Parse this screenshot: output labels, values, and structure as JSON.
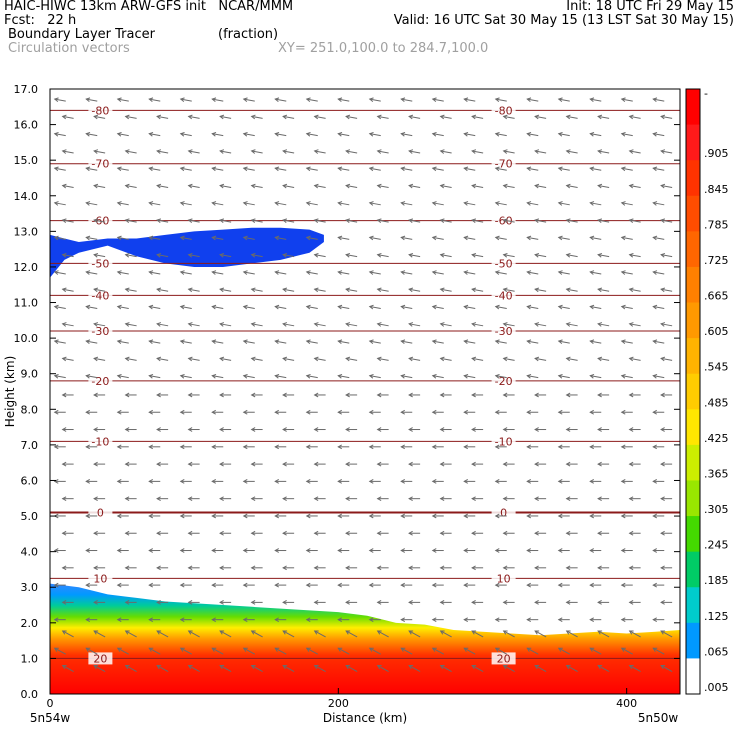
{
  "header": {
    "line1_left": "HAIC-HIWC 13km ARW-GFS init   NCAR/MMM",
    "line1_right": "Init: 18 UTC Fri 29 May 15",
    "line2_left": "Fcst:   22 h",
    "line2_right": "Valid: 16 UTC Sat 30 May 15 (13 LST Sat 30 May 15)",
    "field_name": "Boundary Layer Tracer",
    "field_units": "(fraction)",
    "vector_name": "Circulation vectors",
    "cross_section": "XY= 251.0,100.0 to 284.7,100.0"
  },
  "chart_data": {
    "type": "heatmap",
    "title": "Boundary Layer Tracer",
    "xlabel": "Distance (km)",
    "ylabel": "Height (km)",
    "xlim": [
      0,
      437
    ],
    "ylim": [
      0,
      17
    ],
    "x_ticks": [
      0,
      200,
      400
    ],
    "x_tick_labels": [
      "0",
      "200",
      "400"
    ],
    "x_end_labels": [
      "5n54w",
      "5n50w"
    ],
    "y_ticks": [
      0,
      1,
      2,
      3,
      4,
      5,
      6,
      7,
      8,
      9,
      10,
      11,
      12,
      13,
      14,
      15,
      16,
      17
    ],
    "y_tick_labels": [
      "0.0",
      "1.0",
      "2.0",
      "3.0",
      "4.0",
      "5.0",
      "6.0",
      "7.0",
      "8.0",
      "9.0",
      "10.0",
      "11.0",
      "12.0",
      "13.0",
      "14.0",
      "15.0",
      "16.0",
      "17.0"
    ],
    "colorbar": {
      "labels": [
        "-",
        ".905",
        ".845",
        ".785",
        ".725",
        ".665",
        ".605",
        ".545",
        ".485",
        ".425",
        ".365",
        ".305",
        ".245",
        ".185",
        ".125",
        ".065",
        ".005"
      ],
      "colors": [
        "#ff0000",
        "#ff1a1a",
        "#ff3300",
        "#ff4d00",
        "#ff6600",
        "#ff8000",
        "#ff9900",
        "#ffb300",
        "#ffcc00",
        "#ffe600",
        "#ccee00",
        "#99e600",
        "#44d900",
        "#00cc66",
        "#00cccc",
        "#0099ff",
        "#ffffff"
      ]
    },
    "boundary_layer_top": {
      "x": [
        0,
        20,
        40,
        60,
        80,
        100,
        120,
        140,
        160,
        180,
        200,
        220,
        240,
        260,
        280,
        300,
        320,
        340,
        360,
        380,
        400,
        420,
        437
      ],
      "y": [
        3.1,
        3.0,
        2.8,
        2.7,
        2.6,
        2.55,
        2.5,
        2.45,
        2.4,
        2.35,
        2.3,
        2.2,
        2.0,
        1.95,
        1.8,
        1.75,
        1.7,
        1.65,
        1.7,
        1.75,
        1.7,
        1.75,
        1.8
      ]
    },
    "upper_tracer_patch": {
      "x": [
        0,
        10,
        20,
        40,
        60,
        80,
        100,
        120,
        140,
        160,
        180,
        190
      ],
      "top": [
        12.9,
        12.8,
        12.7,
        12.8,
        12.8,
        12.9,
        13.0,
        13.05,
        13.1,
        13.1,
        13.05,
        12.9
      ],
      "bottom": [
        11.7,
        12.2,
        12.4,
        12.6,
        12.3,
        12.1,
        12.0,
        12.0,
        12.1,
        12.2,
        12.4,
        12.7
      ]
    },
    "temperature_contours": [
      {
        "label": "20",
        "y_left": 1.0,
        "y_right": 1.0
      },
      {
        "label": "10",
        "y_left": 3.25,
        "y_right": 3.25
      },
      {
        "label": "0",
        "y_left": 5.1,
        "y_right": 5.1
      },
      {
        "label": "-10",
        "y_left": 7.1,
        "y_right": 7.1
      },
      {
        "label": "-20",
        "y_left": 8.8,
        "y_right": 8.8
      },
      {
        "label": "-30",
        "y_left": 10.2,
        "y_right": 10.2
      },
      {
        "label": "-40",
        "y_left": 11.2,
        "y_right": 11.2
      },
      {
        "label": "-50",
        "y_left": 12.1,
        "y_right": 12.1
      },
      {
        "label": "-60",
        "y_left": 13.3,
        "y_right": 13.3
      },
      {
        "label": "-70",
        "y_left": 14.9,
        "y_right": 14.9
      },
      {
        "label": "-80",
        "y_left": 16.4,
        "y_right": 16.4
      }
    ],
    "vectors": {
      "dominant_direction": "westward",
      "low_levels_direction": "southwestward"
    }
  }
}
